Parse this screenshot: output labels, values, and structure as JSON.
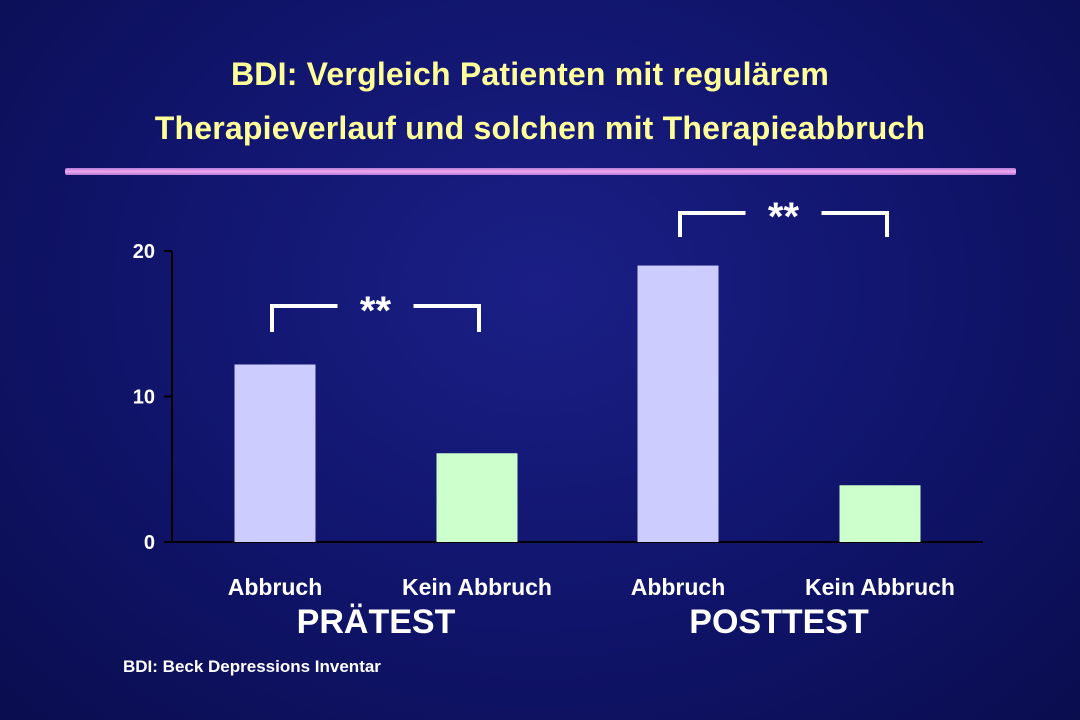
{
  "title_line1": "BDI: Vergleich Patienten mit regulärem",
  "title_line2": "Therapieverlauf und solchen mit Therapieabbruch",
  "footnote": "BDI: Beck Depressions Inventar",
  "colors": {
    "background": "#10146a",
    "title": "#ffff99",
    "bar_abbruch": "#ccccff",
    "bar_kein_abbruch": "#ccffcc",
    "rule": "#e59ae5"
  },
  "chart_data": {
    "type": "bar",
    "title": "",
    "xlabel": "",
    "ylabel": "",
    "ylim": [
      0,
      20
    ],
    "yticks": [
      0,
      10,
      20
    ],
    "grid": false,
    "groups": [
      {
        "label": "PRÄTEST",
        "bars": [
          {
            "label": "Abbruch",
            "value": 12.2,
            "color": "#ccccff"
          },
          {
            "label": "Kein Abbruch",
            "value": 6.1,
            "color": "#ccffcc"
          }
        ],
        "significance": "**"
      },
      {
        "label": "POSTTEST",
        "bars": [
          {
            "label": "Abbruch",
            "value": 19.0,
            "color": "#ccccff"
          },
          {
            "label": "Kein Abbruch",
            "value": 3.9,
            "color": "#ccffcc"
          }
        ],
        "significance": "**"
      }
    ]
  }
}
